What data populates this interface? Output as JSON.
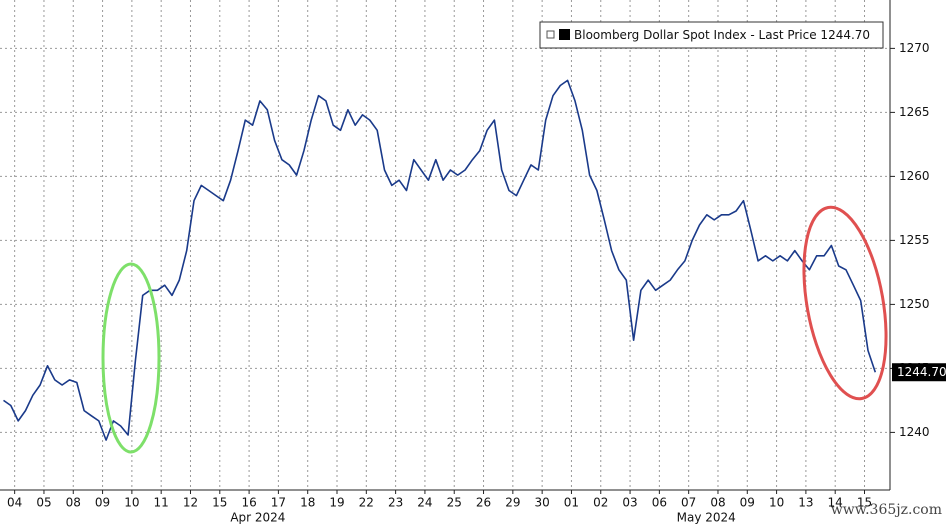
{
  "chart_data": {
    "type": "line",
    "series": [
      {
        "name": "Bloomberg Dollar Spot Index - Last Price 1244.70",
        "color": "#1a3a8a",
        "values": [
          1242.5,
          1242.1,
          1240.9,
          1241.7,
          1242.9,
          1243.7,
          1245.2,
          1244.1,
          1243.7,
          1244.1,
          1243.9,
          1241.7,
          1241.3,
          1240.9,
          1239.4,
          1240.9,
          1240.5,
          1239.8,
          1245.6,
          1250.7,
          1251.1,
          1251.1,
          1251.5,
          1250.7,
          1251.9,
          1254.2,
          1258.1,
          1259.3,
          1258.9,
          1258.5,
          1258.1,
          1259.7,
          1262.0,
          1264.4,
          1264.0,
          1265.9,
          1265.2,
          1262.8,
          1261.3,
          1260.9,
          1260.1,
          1262.0,
          1264.4,
          1266.3,
          1265.9,
          1264.0,
          1263.6,
          1265.2,
          1264.0,
          1264.8,
          1264.4,
          1263.6,
          1260.5,
          1259.3,
          1259.7,
          1258.9,
          1261.3,
          1260.5,
          1259.7,
          1261.3,
          1259.7,
          1260.5,
          1260.1,
          1260.5,
          1261.3,
          1262.0,
          1263.6,
          1264.4,
          1260.5,
          1258.9,
          1258.5,
          1259.7,
          1260.9,
          1260.5,
          1264.4,
          1266.3,
          1267.1,
          1267.5,
          1265.9,
          1263.6,
          1260.1,
          1258.9,
          1256.6,
          1254.2,
          1252.7,
          1251.9,
          1247.2,
          1251.1,
          1251.9,
          1251.1,
          1251.5,
          1251.9,
          1252.7,
          1253.4,
          1255.0,
          1256.2,
          1257.0,
          1256.6,
          1257.0,
          1257.0,
          1257.3,
          1258.1,
          1255.8,
          1253.4,
          1253.8,
          1253.4,
          1253.8,
          1253.4,
          1254.2,
          1253.4,
          1252.7,
          1253.8,
          1253.8,
          1254.6,
          1253.0,
          1252.7,
          1251.5,
          1250.3,
          1246.4,
          1244.7
        ]
      }
    ],
    "x": [
      0.12,
      0.37,
      0.62,
      0.87,
      1.12,
      1.37,
      1.62,
      1.87,
      2.12,
      2.37,
      2.62,
      2.87,
      3.12,
      3.37,
      3.62,
      3.87,
      4.12,
      4.37,
      4.62,
      4.87,
      5.12,
      5.37,
      5.62,
      5.87,
      6.12,
      6.37,
      6.62,
      6.87,
      7.12,
      7.37,
      7.62,
      7.87,
      8.12,
      8.37,
      8.62,
      8.87,
      9.12,
      9.37,
      9.62,
      9.87,
      10.12,
      10.37,
      10.62,
      10.87,
      11.12,
      11.37,
      11.62,
      11.87,
      12.12,
      12.37,
      12.62,
      12.87,
      13.12,
      13.37,
      13.62,
      13.87,
      14.12,
      14.37,
      14.62,
      14.87,
      15.12,
      15.37,
      15.62,
      15.87,
      16.12,
      16.37,
      16.62,
      16.87,
      17.12,
      17.37,
      17.62,
      17.87,
      18.12,
      18.37,
      18.62,
      18.87,
      19.12,
      19.37,
      19.62,
      19.87,
      20.12,
      20.37,
      20.62,
      20.87,
      21.12,
      21.37,
      21.62,
      21.87,
      22.12,
      22.37,
      22.62,
      22.87,
      23.12,
      23.37,
      23.62,
      23.87,
      24.12,
      24.37,
      24.62,
      24.87,
      25.12,
      25.37,
      25.62,
      25.87,
      26.12,
      26.37,
      26.62,
      26.87,
      27.12,
      27.37,
      27.62,
      27.87,
      28.12,
      28.37,
      28.62,
      28.87,
      29.12,
      29.37,
      29.62,
      29.87
    ],
    "xlim": [
      0,
      30.37
    ],
    "xticks": [
      {
        "value": 0.5,
        "label": "04"
      },
      {
        "value": 1.5,
        "label": "05"
      },
      {
        "value": 2.5,
        "label": "08"
      },
      {
        "value": 3.5,
        "label": "09"
      },
      {
        "value": 4.5,
        "label": "10"
      },
      {
        "value": 5.5,
        "label": "11"
      },
      {
        "value": 6.5,
        "label": "12"
      },
      {
        "value": 7.5,
        "label": "15"
      },
      {
        "value": 8.5,
        "label": "16"
      },
      {
        "value": 9.5,
        "label": "17"
      },
      {
        "value": 10.5,
        "label": "18"
      },
      {
        "value": 11.5,
        "label": "19"
      },
      {
        "value": 12.5,
        "label": "22"
      },
      {
        "value": 13.5,
        "label": "23"
      },
      {
        "value": 14.5,
        "label": "24"
      },
      {
        "value": 15.5,
        "label": "25"
      },
      {
        "value": 16.5,
        "label": "26"
      },
      {
        "value": 17.5,
        "label": "29"
      },
      {
        "value": 18.5,
        "label": "30"
      },
      {
        "value": 19.5,
        "label": "01"
      },
      {
        "value": 20.5,
        "label": "02"
      },
      {
        "value": 21.5,
        "label": "03"
      },
      {
        "value": 22.5,
        "label": "06"
      },
      {
        "value": 23.5,
        "label": "07"
      },
      {
        "value": 24.5,
        "label": "08"
      },
      {
        "value": 25.5,
        "label": "09"
      },
      {
        "value": 26.5,
        "label": "10"
      },
      {
        "value": 27.5,
        "label": "13"
      },
      {
        "value": 28.5,
        "label": "14"
      },
      {
        "value": 29.5,
        "label": "15"
      }
    ],
    "month_labels": [
      {
        "value": 8.8,
        "label": "Apr 2024"
      },
      {
        "value": 24.1,
        "label": "May 2024"
      }
    ],
    "ylim": [
      1235.5,
      1273.78
    ],
    "yticks": [
      1240,
      1245,
      1250,
      1255,
      1260,
      1265,
      1270
    ],
    "grid": true,
    "last_price": {
      "value": 1244.7,
      "label": "1244.70"
    },
    "watermark": "www.365jz.com"
  }
}
